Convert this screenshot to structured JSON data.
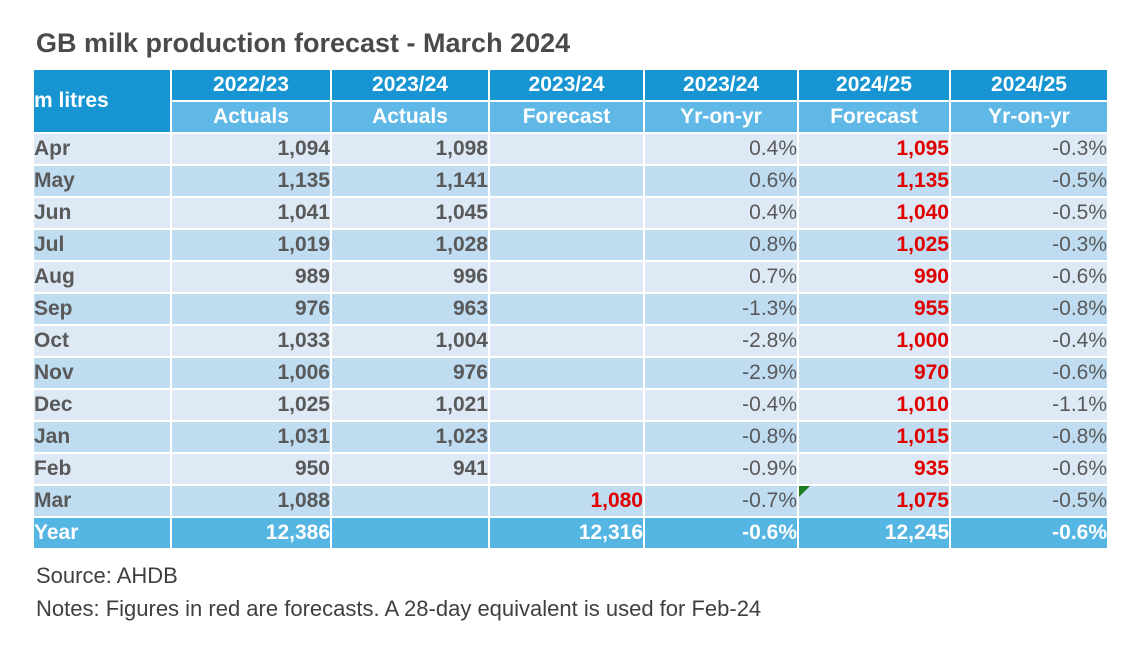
{
  "title": "GB milk production forecast - March 2024",
  "table": {
    "corner_label": "m litres",
    "column_groups": [
      {
        "year": "2022/23",
        "label": "Actuals"
      },
      {
        "year": "2023/24",
        "label": "Actuals"
      },
      {
        "year": "2023/24",
        "label": "Forecast"
      },
      {
        "year": "2023/24",
        "label": "Yr-on-yr"
      },
      {
        "year": "2024/25",
        "label": "Forecast"
      },
      {
        "year": "2024/25",
        "label": "Yr-on-yr"
      }
    ],
    "rows": [
      {
        "month": "Apr",
        "cells": [
          {
            "t": "1,094",
            "c": "num"
          },
          {
            "t": "1,098",
            "c": "num"
          },
          {
            "t": "",
            "c": "blank"
          },
          {
            "t": "0.4%",
            "c": "pct"
          },
          {
            "t": "1,095",
            "c": "red"
          },
          {
            "t": "-0.3%",
            "c": "pct"
          }
        ]
      },
      {
        "month": "May",
        "cells": [
          {
            "t": "1,135",
            "c": "num"
          },
          {
            "t": "1,141",
            "c": "num"
          },
          {
            "t": "",
            "c": "blank"
          },
          {
            "t": "0.6%",
            "c": "pct"
          },
          {
            "t": "1,135",
            "c": "red"
          },
          {
            "t": "-0.5%",
            "c": "pct"
          }
        ]
      },
      {
        "month": "Jun",
        "cells": [
          {
            "t": "1,041",
            "c": "num"
          },
          {
            "t": "1,045",
            "c": "num"
          },
          {
            "t": "",
            "c": "blank"
          },
          {
            "t": "0.4%",
            "c": "pct"
          },
          {
            "t": "1,040",
            "c": "red"
          },
          {
            "t": "-0.5%",
            "c": "pct"
          }
        ]
      },
      {
        "month": "Jul",
        "cells": [
          {
            "t": "1,019",
            "c": "num"
          },
          {
            "t": "1,028",
            "c": "num"
          },
          {
            "t": "",
            "c": "blank"
          },
          {
            "t": "0.8%",
            "c": "pct"
          },
          {
            "t": "1,025",
            "c": "red"
          },
          {
            "t": "-0.3%",
            "c": "pct"
          }
        ]
      },
      {
        "month": "Aug",
        "cells": [
          {
            "t": "989",
            "c": "num"
          },
          {
            "t": "996",
            "c": "num"
          },
          {
            "t": "",
            "c": "blank"
          },
          {
            "t": "0.7%",
            "c": "pct"
          },
          {
            "t": "990",
            "c": "red"
          },
          {
            "t": "-0.6%",
            "c": "pct"
          }
        ]
      },
      {
        "month": "Sep",
        "cells": [
          {
            "t": "976",
            "c": "num"
          },
          {
            "t": "963",
            "c": "num"
          },
          {
            "t": "",
            "c": "blank"
          },
          {
            "t": "-1.3%",
            "c": "pct"
          },
          {
            "t": "955",
            "c": "red"
          },
          {
            "t": "-0.8%",
            "c": "pct"
          }
        ]
      },
      {
        "month": "Oct",
        "cells": [
          {
            "t": "1,033",
            "c": "num"
          },
          {
            "t": "1,004",
            "c": "num"
          },
          {
            "t": "",
            "c": "blank"
          },
          {
            "t": "-2.8%",
            "c": "pct"
          },
          {
            "t": "1,000",
            "c": "red"
          },
          {
            "t": "-0.4%",
            "c": "pct"
          }
        ]
      },
      {
        "month": "Nov",
        "cells": [
          {
            "t": "1,006",
            "c": "num"
          },
          {
            "t": "976",
            "c": "num"
          },
          {
            "t": "",
            "c": "blank"
          },
          {
            "t": "-2.9%",
            "c": "pct"
          },
          {
            "t": "970",
            "c": "red"
          },
          {
            "t": "-0.6%",
            "c": "pct"
          }
        ]
      },
      {
        "month": "Dec",
        "cells": [
          {
            "t": "1,025",
            "c": "num"
          },
          {
            "t": "1,021",
            "c": "num"
          },
          {
            "t": "",
            "c": "blank"
          },
          {
            "t": "-0.4%",
            "c": "pct"
          },
          {
            "t": "1,010",
            "c": "red"
          },
          {
            "t": "-1.1%",
            "c": "pct"
          }
        ]
      },
      {
        "month": "Jan",
        "cells": [
          {
            "t": "1,031",
            "c": "num"
          },
          {
            "t": "1,023",
            "c": "num"
          },
          {
            "t": "",
            "c": "blank"
          },
          {
            "t": "-0.8%",
            "c": "pct"
          },
          {
            "t": "1,015",
            "c": "red"
          },
          {
            "t": "-0.8%",
            "c": "pct"
          }
        ]
      },
      {
        "month": "Feb",
        "cells": [
          {
            "t": "950",
            "c": "num"
          },
          {
            "t": "941",
            "c": "num"
          },
          {
            "t": "",
            "c": "blank"
          },
          {
            "t": "-0.9%",
            "c": "pct"
          },
          {
            "t": "935",
            "c": "red"
          },
          {
            "t": "-0.6%",
            "c": "pct"
          }
        ]
      },
      {
        "month": "Mar",
        "cells": [
          {
            "t": "1,088",
            "c": "num"
          },
          {
            "t": "",
            "c": "blank"
          },
          {
            "t": "1,080",
            "c": "red"
          },
          {
            "t": "-0.7%",
            "c": "pct"
          },
          {
            "t": "1,075",
            "c": "red",
            "marker": true
          },
          {
            "t": "-0.5%",
            "c": "pct"
          }
        ]
      }
    ],
    "total_row": {
      "label": "Year",
      "cells": [
        {
          "t": "12,386",
          "c": "num"
        },
        {
          "t": "",
          "c": "blank"
        },
        {
          "t": "12,316",
          "c": "num"
        },
        {
          "t": "-0.6%",
          "c": "pct"
        },
        {
          "t": "12,245",
          "c": "num"
        },
        {
          "t": "-0.6%",
          "c": "pct"
        }
      ]
    }
  },
  "footer": {
    "source": "Source: AHDB",
    "notes": "Notes: Figures in red are forecasts. A 28-day equivalent is used for Feb-24"
  },
  "colors": {
    "header_blue": "#1795D2",
    "subheader_blue": "#5FB8E6",
    "row_light": "#DDEAF6",
    "row_alt": "#BFDCF1",
    "total_row_blue": "#55B5E3",
    "forecast_red": "#E00000",
    "cell_text": "#595959",
    "title_text": "#4A4A4A",
    "note_text": "#3F3F3F",
    "marker_green": "#1E7B1E"
  },
  "chart_data": {
    "type": "table",
    "title": "GB milk production forecast - March 2024",
    "unit": "m litres",
    "columns": [
      "2022/23 Actuals",
      "2023/24 Actuals",
      "2023/24 Forecast",
      "2023/24 Yr-on-yr",
      "2024/25 Forecast",
      "2024/25 Yr-on-yr"
    ],
    "months": [
      "Apr",
      "May",
      "Jun",
      "Jul",
      "Aug",
      "Sep",
      "Oct",
      "Nov",
      "Dec",
      "Jan",
      "Feb",
      "Mar"
    ],
    "actuals_2022_23": [
      1094,
      1135,
      1041,
      1019,
      989,
      976,
      1033,
      1006,
      1025,
      1031,
      950,
      1088
    ],
    "actuals_2023_24": [
      1098,
      1141,
      1045,
      1028,
      996,
      963,
      1004,
      976,
      1021,
      1023,
      941,
      null
    ],
    "forecast_2023_24": [
      null,
      null,
      null,
      null,
      null,
      null,
      null,
      null,
      null,
      null,
      null,
      1080
    ],
    "yoy_2023_24_pct": [
      0.4,
      0.6,
      0.4,
      0.8,
      0.7,
      -1.3,
      -2.8,
      -2.9,
      -0.4,
      -0.8,
      -0.9,
      -0.7
    ],
    "forecast_2024_25": [
      1095,
      1135,
      1040,
      1025,
      990,
      955,
      1000,
      970,
      1010,
      1015,
      935,
      1075
    ],
    "yoy_2024_25_pct": [
      -0.3,
      -0.5,
      -0.5,
      -0.3,
      -0.6,
      -0.8,
      -0.4,
      -0.6,
      -1.1,
      -0.8,
      -0.6,
      -0.5
    ],
    "year_totals": {
      "actuals_2022_23": 12386,
      "forecast_2023_24": 12316,
      "yoy_2023_24_pct": -0.6,
      "forecast_2024_25": 12245,
      "yoy_2024_25_pct": -0.6
    },
    "notes": "Figures in red are forecasts. A 28-day equivalent is used for Feb-24",
    "source": "AHDB"
  }
}
